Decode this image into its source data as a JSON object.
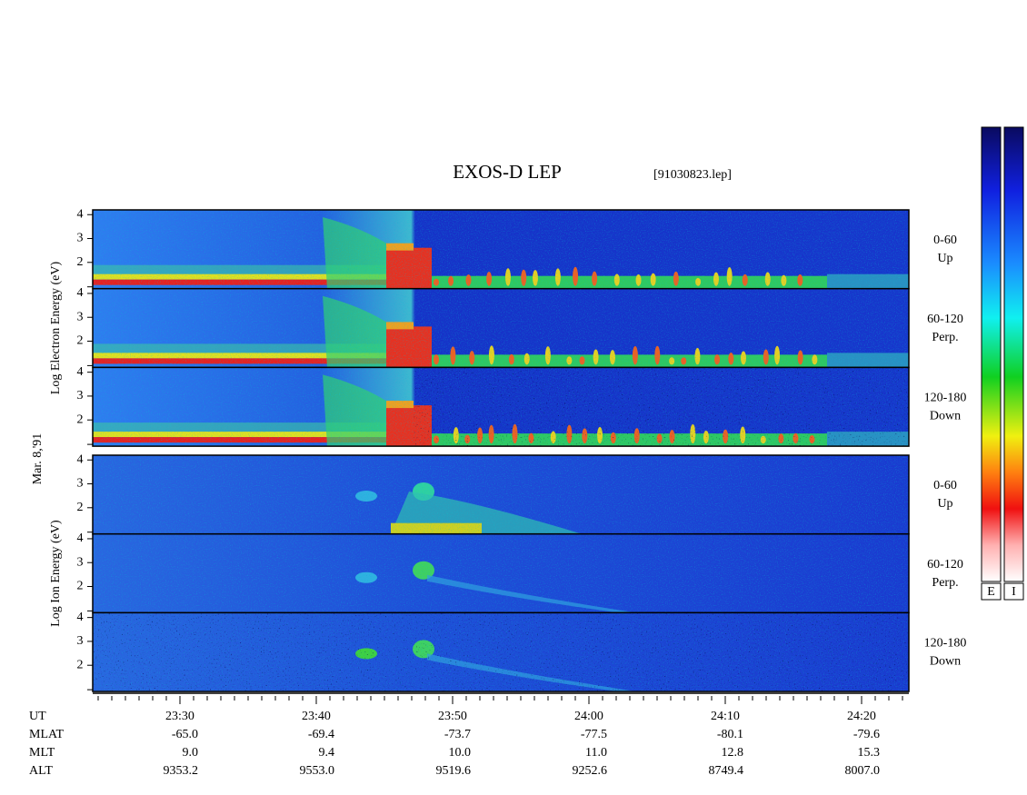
{
  "title": "EXOS-D LEP",
  "file": "[91030823.lep]",
  "date": "Mar. 8,'91",
  "groups": [
    {
      "label": "Log Electron Energy (eV)",
      "species": "electron",
      "panels": [
        {
          "ylim": [
            0.9,
            4.2
          ],
          "yticks": [
            2,
            3,
            4
          ],
          "angle": "0-60",
          "direction": "Up"
        },
        {
          "ylim": [
            0.9,
            4.2
          ],
          "yticks": [
            2,
            3,
            4
          ],
          "angle": "60-120",
          "direction": "Perp."
        },
        {
          "ylim": [
            0.9,
            4.2
          ],
          "yticks": [
            2,
            3,
            4
          ],
          "angle": "120-180",
          "direction": "Down"
        }
      ]
    },
    {
      "label": "Log Ion Energy (eV)",
      "species": "ion",
      "panels": [
        {
          "ylim": [
            0.9,
            4.2
          ],
          "yticks": [
            2,
            3,
            4
          ],
          "angle": "0-60",
          "direction": "Up"
        },
        {
          "ylim": [
            0.9,
            4.2
          ],
          "yticks": [
            2,
            3,
            4
          ],
          "angle": "60-120",
          "direction": "Perp."
        },
        {
          "ylim": [
            0.9,
            4.2
          ],
          "yticks": [
            2,
            3,
            4
          ],
          "angle": "120-180",
          "direction": "Down"
        }
      ]
    }
  ],
  "colorbar": {
    "labels": [
      "E",
      "I"
    ]
  },
  "orbit": {
    "rows": [
      {
        "name": "UT",
        "values": [
          "23:30",
          "23:40",
          "23:50",
          "24:00",
          "24:10",
          "24:20"
        ]
      },
      {
        "name": "MLAT",
        "values": [
          "-65.0",
          "-69.4",
          "-73.7",
          "-77.5",
          "-80.1",
          "-79.6"
        ]
      },
      {
        "name": "MLT",
        "values": [
          "9.0",
          "9.4",
          "10.0",
          "11.0",
          "12.8",
          "15.3"
        ]
      },
      {
        "name": "ALT",
        "values": [
          "9353.2",
          "9553.0",
          "9519.6",
          "9252.6",
          "8749.4",
          "8007.0"
        ]
      }
    ]
  }
}
